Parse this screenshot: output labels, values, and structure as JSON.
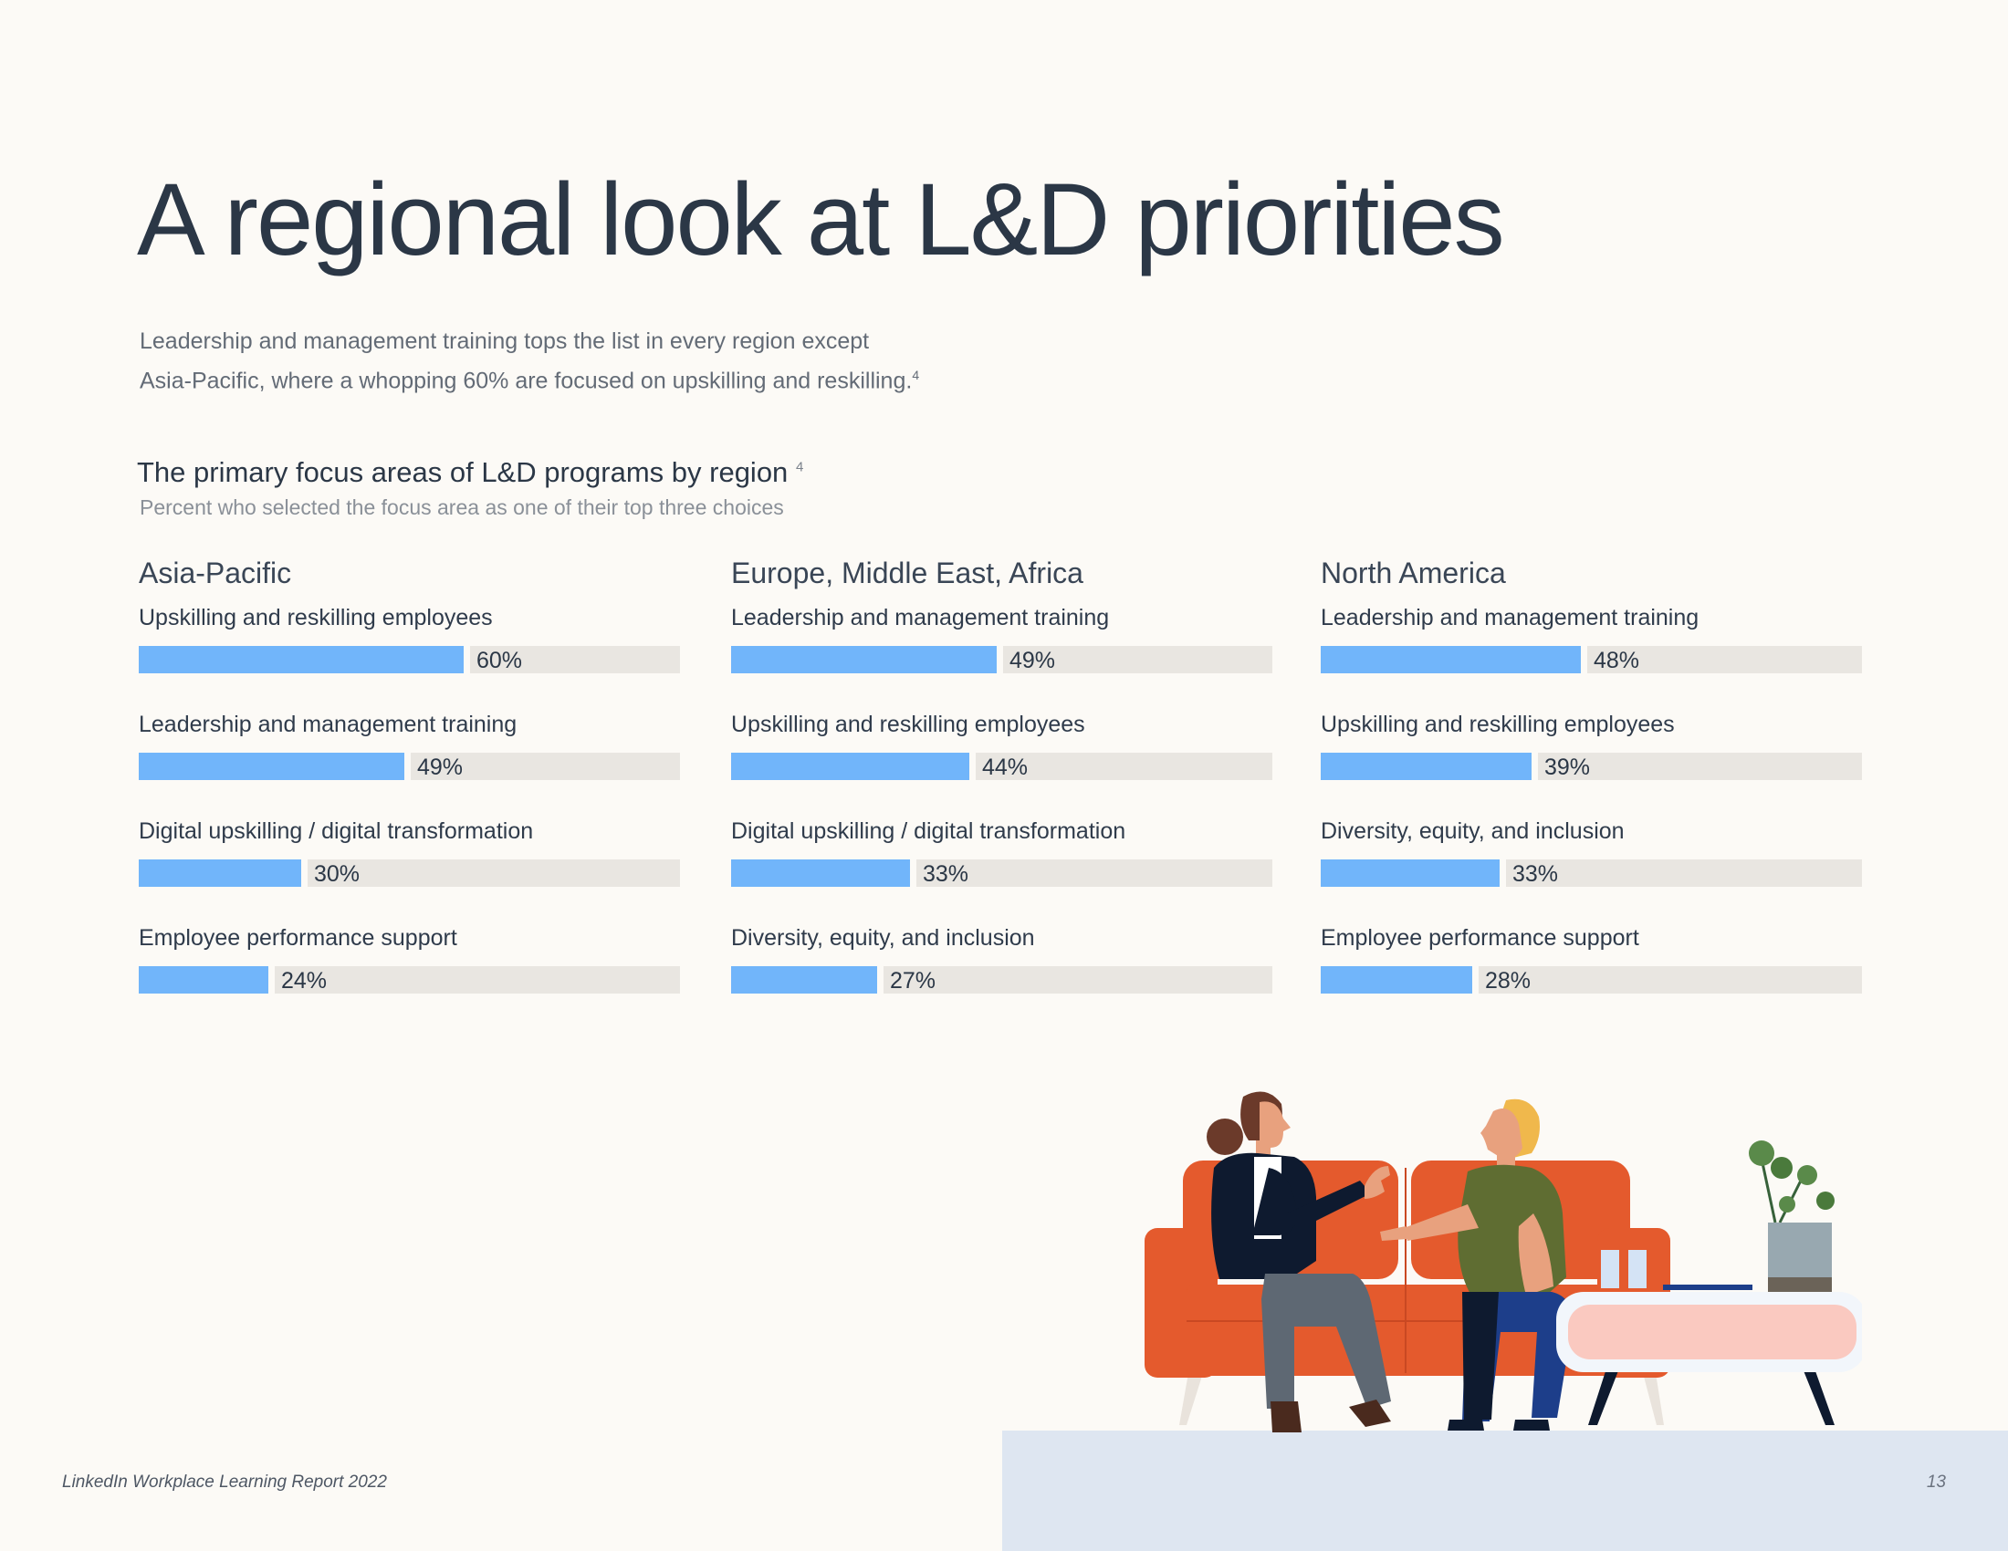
{
  "page": {
    "title": "A regional look at L&D priorities",
    "intro_line1": "Leadership and management training tops the list in every region except",
    "intro_line2": "Asia-Pacific, where a whopping 60% are focused on upskilling and reskilling.",
    "intro_ref": "4",
    "footer": "LinkedIn Workplace Learning Report 2022",
    "page_number": "13"
  },
  "chart_data": {
    "type": "bar",
    "orientation": "horizontal",
    "title": "The primary focus areas of L&D programs by region",
    "title_ref": "4",
    "subtitle": "Percent who selected the focus area as one of their top three choices",
    "xlim": [
      0,
      100
    ],
    "grid": false,
    "colors": {
      "fill": "#71b5fa",
      "track": "#e9e6e1"
    },
    "regions": [
      {
        "name": "Asia-Pacific",
        "items": [
          {
            "label": "Upskilling and reskilling employees",
            "value": 60,
            "value_label": "60%"
          },
          {
            "label": "Leadership and management training",
            "value": 49,
            "value_label": "49%"
          },
          {
            "label": "Digital upskilling / digital transformation",
            "value": 30,
            "value_label": "30%"
          },
          {
            "label": "Employee performance support",
            "value": 24,
            "value_label": "24%"
          }
        ]
      },
      {
        "name": "Europe, Middle East, Africa",
        "items": [
          {
            "label": "Leadership and management training",
            "value": 49,
            "value_label": "49%"
          },
          {
            "label": "Upskilling and reskilling employees",
            "value": 44,
            "value_label": "44%"
          },
          {
            "label": "Digital upskilling / digital transformation",
            "value": 33,
            "value_label": "33%"
          },
          {
            "label": "Diversity, equity, and inclusion",
            "value": 27,
            "value_label": "27%"
          }
        ]
      },
      {
        "name": "North America",
        "items": [
          {
            "label": "Leadership and management training",
            "value": 48,
            "value_label": "48%"
          },
          {
            "label": "Upskilling and reskilling employees",
            "value": 39,
            "value_label": "39%"
          },
          {
            "label": "Diversity, equity, and inclusion",
            "value": 33,
            "value_label": "33%"
          },
          {
            "label": "Employee performance support",
            "value": 28,
            "value_label": "28%"
          }
        ]
      }
    ]
  }
}
